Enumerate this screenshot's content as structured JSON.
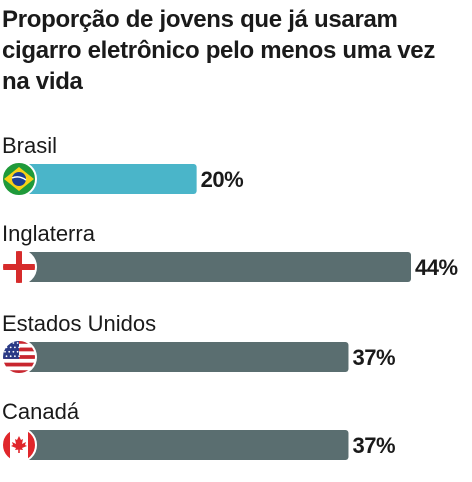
{
  "chart_data": {
    "type": "bar",
    "orientation": "horizontal",
    "title": "Proporção de jovens que já usaram cigarro eletrônico pelo menos uma vez na vida",
    "categories": [
      "Brasil",
      "Inglaterra",
      "Estados Unidos",
      "Canadá"
    ],
    "values": [
      20,
      44,
      37,
      37
    ],
    "value_labels": [
      "20%",
      "44%",
      "37%",
      "37%"
    ],
    "unit": "%",
    "xlim": [
      0,
      44
    ],
    "grid": false,
    "legend": "none",
    "bar_colors": [
      "#4ab5c9",
      "#5a6e70",
      "#5a6e70",
      "#5a6e70"
    ],
    "flags": [
      "brazil-flag-icon",
      "england-flag-icon",
      "usa-flag-icon",
      "canada-flag-icon"
    ]
  }
}
